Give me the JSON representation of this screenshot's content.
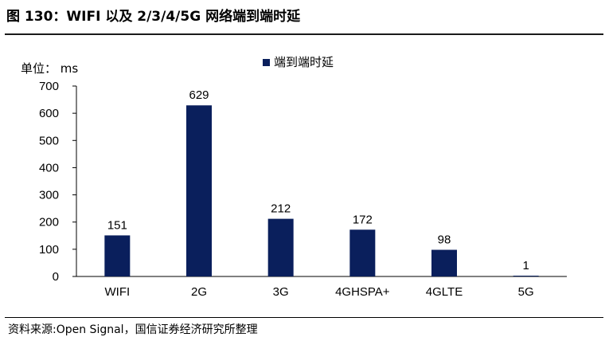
{
  "figure": {
    "title": "图 130：WIFI 以及 2/3/4/5G 网络端到端时延",
    "source": "资料来源:Open Signal，国信证券经济研究所整理"
  },
  "chart_data": {
    "type": "bar",
    "categories": [
      "WIFI",
      "2G",
      "3G",
      "4GHSPA+",
      "4GLTE",
      "5G"
    ],
    "series": [
      {
        "name": "端到端时延",
        "values": [
          151,
          629,
          212,
          172,
          98,
          1
        ],
        "color": "#0a1f5c"
      }
    ],
    "unit_label": "单位： ms",
    "ylim": [
      0,
      700
    ],
    "yticks": [
      "0",
      "100",
      "200",
      "300",
      "400",
      "500",
      "600",
      "700"
    ],
    "data_labels": [
      "151",
      "629",
      "212",
      "172",
      "98",
      "1"
    ],
    "grid": false,
    "legend_position": "top-center"
  }
}
